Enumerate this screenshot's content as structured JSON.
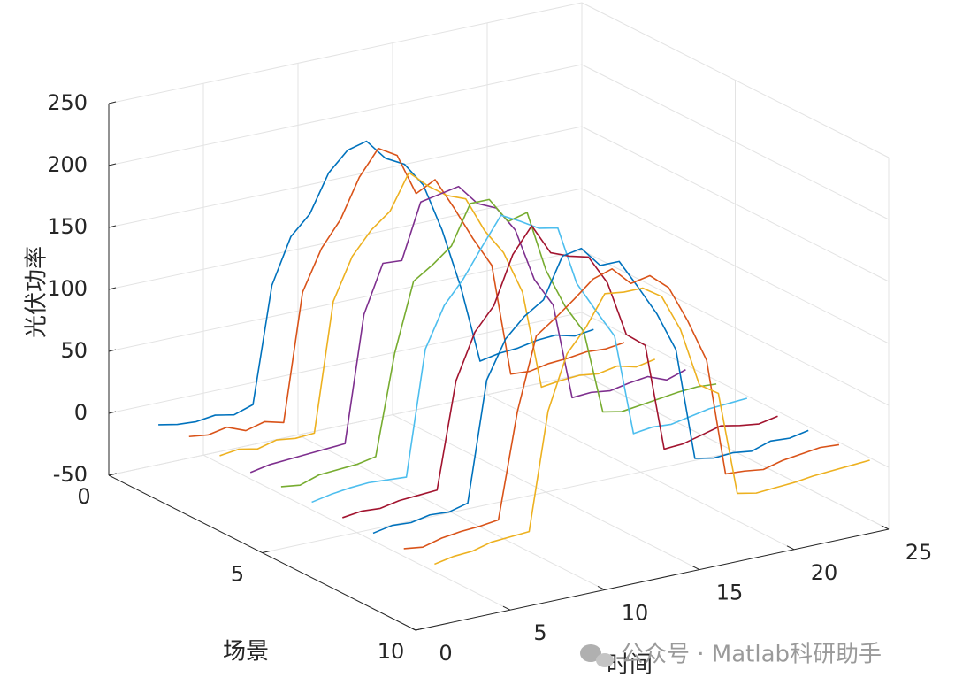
{
  "chart_data": {
    "type": "line3d",
    "xlabel": "时间",
    "ylabel": "场景",
    "zlabel": "光伏功率",
    "xlim": [
      0,
      25
    ],
    "xticks": [
      0,
      5,
      10,
      15,
      20,
      25
    ],
    "ylim": [
      0,
      10
    ],
    "yticks": [
      0,
      5,
      10
    ],
    "zlim": [
      -50,
      250
    ],
    "zticks": [
      -50,
      0,
      50,
      100,
      150,
      200,
      250
    ],
    "grid": true,
    "x": [
      1,
      2,
      3,
      4,
      5,
      6,
      7,
      8,
      9,
      10,
      11,
      12,
      13,
      14,
      15,
      16,
      17,
      18,
      19,
      20,
      21,
      22,
      23,
      24
    ],
    "series": [
      {
        "y": 1,
        "color": "#0072bd",
        "values": [
          0,
          -3,
          -4,
          -2,
          -5,
          0,
          93,
          129,
          144,
          174,
          189,
          193,
          176,
          168,
          148,
          108,
          58,
          -4,
          -1,
          0,
          3,
          4,
          0,
          2
        ]
      },
      {
        "y": 2,
        "color": "#d95319",
        "values": [
          3,
          1,
          4,
          -2,
          2,
          -2,
          100,
          132,
          152,
          183,
          203,
          194,
          160,
          168,
          142,
          114,
          89,
          -2,
          -3,
          0,
          1,
          3,
          2,
          4
        ]
      },
      {
        "y": 3,
        "color": "#edb120",
        "values": [
          0,
          2,
          -1,
          3,
          1,
          2,
          105,
          138,
          156,
          168,
          196,
          182,
          171,
          165,
          136,
          115,
          80,
          0,
          2,
          3,
          1,
          4,
          0,
          3
        ]
      },
      {
        "y": 4,
        "color": "#7e2f8e",
        "values": [
          -1,
          2,
          3,
          4,
          5,
          6,
          107,
          145,
          144,
          188,
          191,
          194,
          177,
          170,
          149,
          106,
          82,
          4,
          5,
          3,
          6,
          8,
          2,
          7
        ]
      },
      {
        "y": 5,
        "color": "#77ac30",
        "values": [
          0,
          -2,
          3,
          4,
          5,
          8,
          88,
          143,
          153,
          165,
          196,
          196,
          175,
          179,
          129,
          97,
          73,
          5,
          2,
          4,
          6,
          8,
          9,
          8
        ]
      },
      {
        "y": 6,
        "color": "#4dbeee",
        "values": [
          0,
          3,
          5,
          6,
          5,
          4,
          104,
          136,
          154,
          177,
          199,
          191,
          182,
          179,
          131,
          106,
          82,
          0,
          2,
          1,
          4,
          7,
          8,
          9
        ]
      },
      {
        "y": 7,
        "color": "#a2142f",
        "values": [
          0,
          2,
          1,
          4,
          5,
          6,
          91,
          127,
          145,
          183,
          203,
          178,
          172,
          168,
          144,
          99,
          87,
          0,
          1,
          5,
          9,
          6,
          4,
          7
        ]
      },
      {
        "y": 8,
        "color": "#0072bd",
        "values": [
          0,
          3,
          2,
          5,
          4,
          8,
          104,
          134,
          149,
          159,
          191,
          194,
          177,
          177,
          153,
          128,
          96,
          5,
          2,
          3,
          1,
          6,
          5,
          8
        ]
      },
      {
        "y": 9,
        "color": "#d95319",
        "values": [
          0,
          -2,
          2,
          4,
          5,
          7,
          91,
          149,
          160,
          172,
          185,
          190,
          175,
          178,
          165,
          135,
          100,
          5,
          4,
          2,
          6,
          8,
          10,
          9
        ]
      },
      {
        "y": 10,
        "color": "#edb120",
        "values": [
          0,
          3,
          4,
          8,
          9,
          10,
          104,
          147,
          165,
          189,
          187,
          187,
          177,
          147,
          99,
          89,
          5,
          2,
          3,
          4,
          6,
          7,
          8,
          9
        ]
      }
    ]
  },
  "watermark": "公众号 · Matlab科研助手"
}
